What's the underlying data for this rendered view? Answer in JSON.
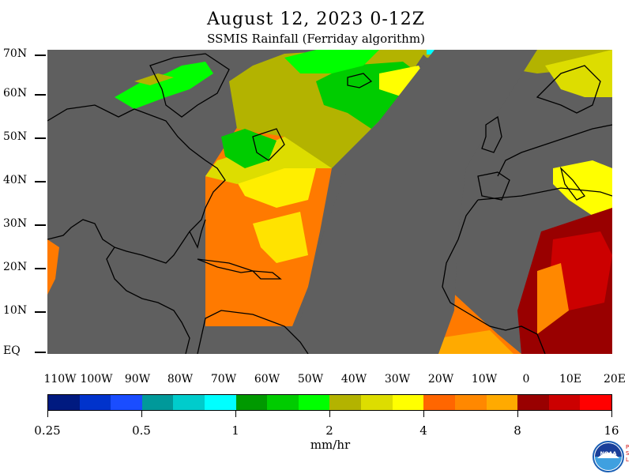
{
  "header": {
    "title": "August 12, 2023 0-12Z",
    "subtitle": "SSMIS Rainfall (Ferriday algorithm)"
  },
  "map": {
    "lat_labels": [
      "70N",
      "60N",
      "50N",
      "40N",
      "30N",
      "20N",
      "10N",
      "EQ"
    ],
    "lon_labels": [
      "110W",
      "100W",
      "90W",
      "80W",
      "70W",
      "60W",
      "50W",
      "40W",
      "30W",
      "20W",
      "10W",
      "0",
      "10E",
      "20E"
    ],
    "no_data_color": "#5f5f5f",
    "coastline_color": "#000000"
  },
  "colorbar": {
    "colors": [
      "#001a80",
      "#0033cc",
      "#1a4dff",
      "#00999a",
      "#00cccc",
      "#00ffff",
      "#009900",
      "#00cc00",
      "#00ff00",
      "#b3b300",
      "#dddd00",
      "#ffff00",
      "#ff6600",
      "#ff8800",
      "#ffaa00",
      "#990000",
      "#cc0000",
      "#ff0000"
    ],
    "labels": [
      "0.25",
      "0.5",
      "1",
      "2",
      "4",
      "8",
      "16"
    ],
    "units": "mm/hr"
  },
  "logo": {
    "name": "NOAA",
    "side_text": "PSL"
  }
}
